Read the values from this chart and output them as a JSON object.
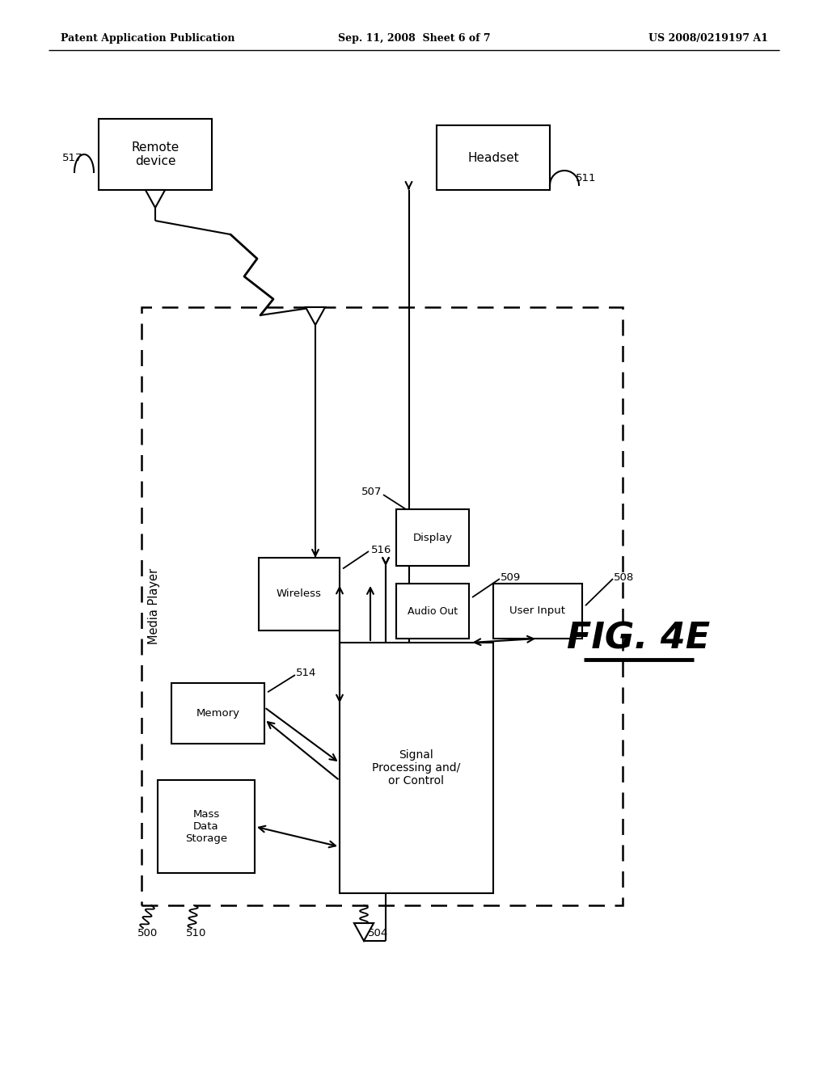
{
  "bg_color": "#ffffff",
  "header_left": "Patent Application Publication",
  "header_center": "Sep. 11, 2008  Sheet 6 of 7",
  "header_right": "US 2008/0219197 A1",
  "fig_label": "FIG. 4E",
  "line_color": "#000000",
  "text_color": "#000000"
}
